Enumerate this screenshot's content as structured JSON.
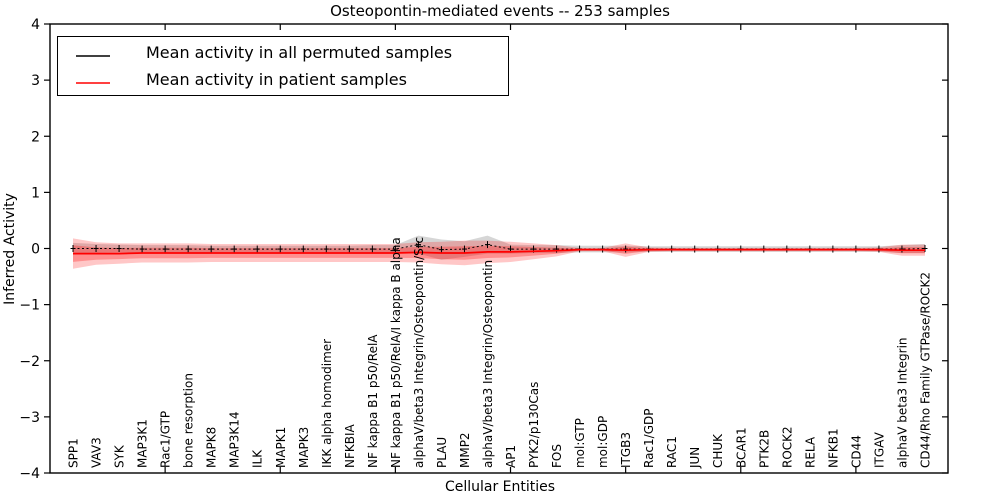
{
  "title": "Osteopontin-mediated events -- 253 samples",
  "axes": {
    "ylabel": "Inferred Activity",
    "xlabel": "Cellular Entities",
    "yticks": [
      "4",
      "3",
      "2",
      "1",
      "0",
      "−1",
      "−2",
      "−3",
      "−4"
    ],
    "ytick_values": [
      4,
      3,
      2,
      1,
      0,
      -1,
      -2,
      -3,
      -4
    ],
    "xtick_values": [
      5,
      10,
      15,
      20,
      25,
      30,
      35
    ]
  },
  "legend": {
    "items": [
      {
        "label": "Mean activity in all permuted samples",
        "color": "#000000"
      },
      {
        "label": "Mean activity in patient samples",
        "color": "#ff0000"
      }
    ]
  },
  "chart_data": {
    "type": "line",
    "title": "Osteopontin-mediated events -- 253 samples",
    "xlabel": "Cellular Entities",
    "ylabel": "Inferred Activity",
    "ylim": [
      -4,
      4
    ],
    "grid": false,
    "legend_position": "upper left",
    "categories": [
      "SPP1",
      "VAV3",
      "SYK",
      "MAP3K1",
      "Rac1/GTP",
      "bone resorption",
      "MAPK8",
      "MAP3K14",
      "ILK",
      "MAPK1",
      "MAPK3",
      "IKK alpha homodimer",
      "NFKBIA",
      "NF kappa B1 p50/RelA",
      "NF kappa B1 p50/RelA/I kappa B alpha",
      "alphaV/beta3 Integrin/Osteopontin/Src",
      "PLAU",
      "MMP2",
      "alphaV/beta3 Integrin/Osteopontin",
      "AP1",
      "PYK2/p130Cas",
      "FOS",
      "mol:GTP",
      "mol:GDP",
      "ITGB3",
      "Rac1/GDP",
      "RAC1",
      "JUN",
      "CHUK",
      "BCAR1",
      "PTK2B",
      "ROCK2",
      "RELA",
      "NFKB1",
      "CD44",
      "ITGAV",
      "alphaV beta3 Integrin",
      "CD44/Rho Family GTPase/ROCK2"
    ],
    "series": [
      {
        "name": "Mean activity in all permuted samples",
        "color": "#000000",
        "band_color": "#999999",
        "values": [
          0,
          0,
          0,
          -0.01,
          -0.01,
          -0.01,
          -0.01,
          -0.01,
          -0.01,
          -0.01,
          -0.01,
          -0.01,
          -0.01,
          -0.01,
          -0.01,
          0.07,
          -0.02,
          -0.01,
          0.07,
          -0.01,
          -0.01,
          -0.01,
          -0.01,
          -0.01,
          -0.01,
          -0.01,
          -0.01,
          -0.01,
          -0.01,
          -0.01,
          -0.01,
          -0.01,
          -0.01,
          -0.01,
          -0.01,
          -0.01,
          -0.01,
          0
        ],
        "band_halfwidth": [
          0.1,
          0.08,
          0.07,
          0.07,
          0.07,
          0.07,
          0.06,
          0.06,
          0.06,
          0.06,
          0.06,
          0.06,
          0.06,
          0.07,
          0.07,
          0.16,
          0.18,
          0.14,
          0.16,
          0.08,
          0.07,
          0.07,
          0.06,
          0.06,
          0.06,
          0.05,
          0.05,
          0.05,
          0.05,
          0.05,
          0.05,
          0.05,
          0.05,
          0.05,
          0.05,
          0.05,
          0.07,
          0.08
        ]
      },
      {
        "name": "Mean activity in patient samples",
        "color": "#ff0000",
        "band_color": "#ff0000",
        "values": [
          -0.09,
          -0.09,
          -0.09,
          -0.08,
          -0.08,
          -0.08,
          -0.08,
          -0.08,
          -0.08,
          -0.08,
          -0.08,
          -0.08,
          -0.08,
          -0.08,
          -0.08,
          -0.07,
          -0.08,
          -0.08,
          -0.06,
          -0.06,
          -0.05,
          -0.04,
          -0.02,
          -0.02,
          -0.03,
          -0.02,
          -0.02,
          -0.02,
          -0.02,
          -0.02,
          -0.02,
          -0.02,
          -0.02,
          -0.02,
          -0.02,
          -0.02,
          -0.03,
          -0.03
        ],
        "band_halfwidth": [
          0.27,
          0.2,
          0.18,
          0.17,
          0.17,
          0.17,
          0.16,
          0.16,
          0.16,
          0.16,
          0.16,
          0.16,
          0.16,
          0.16,
          0.16,
          0.18,
          0.2,
          0.22,
          0.2,
          0.18,
          0.14,
          0.1,
          0.03,
          0.03,
          0.12,
          0.04,
          0.03,
          0.03,
          0.03,
          0.03,
          0.03,
          0.03,
          0.03,
          0.03,
          0.03,
          0.04,
          0.1,
          0.1
        ]
      }
    ]
  }
}
